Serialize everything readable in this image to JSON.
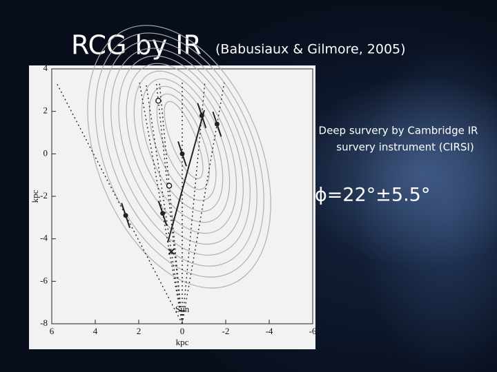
{
  "title": "RCG by IR",
  "subtitle": "(Babusiaux & Gilmore, 2005)",
  "notes": [
    "Deep survery by Cambridge IR",
    "survery instrument (CIRSI)",
    "ϕ=22°±5.5°"
  ],
  "figure": {
    "x_label": "kpc",
    "y_label": "kpc",
    "sun_label": "Sun",
    "xlim": [
      6,
      -6
    ],
    "ylim": [
      -8,
      4
    ],
    "xticks": [
      6,
      4,
      2,
      0,
      -2,
      -4,
      -6
    ],
    "yticks": [
      4,
      2,
      0,
      -2,
      -4,
      -6,
      -8
    ],
    "points": {
      "filled": {
        "x": [
          -0.9,
          -1.6,
          0.0,
          0.9,
          2.6
        ],
        "y": [
          1.8,
          1.4,
          0.0,
          -2.8,
          -2.9
        ]
      },
      "open": {
        "x": [
          1.1,
          0.6
        ],
        "y": [
          2.5,
          -1.5
        ]
      },
      "cross": {
        "x": [
          0.5
        ],
        "y": [
          -4.6
        ]
      }
    }
  }
}
